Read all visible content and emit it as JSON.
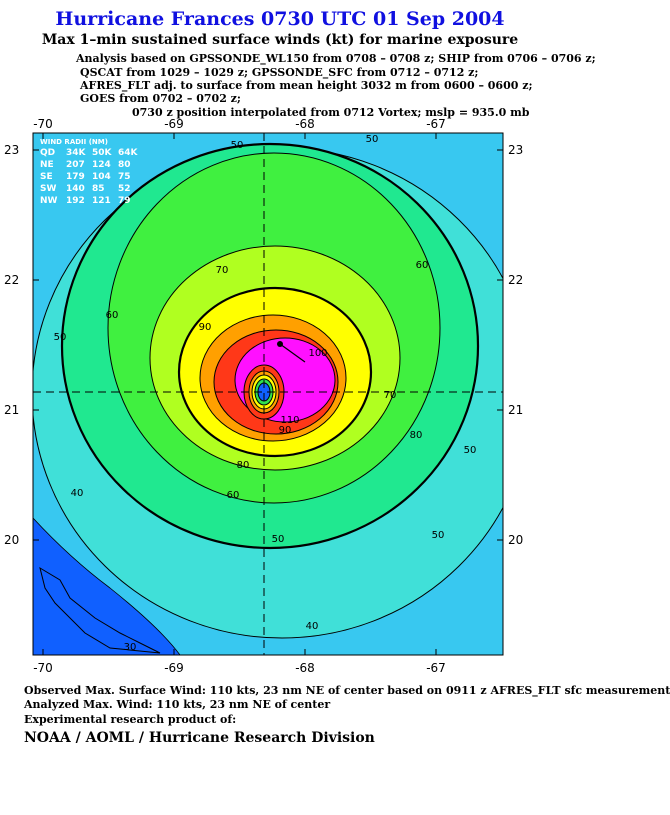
{
  "header": {
    "title": "Hurricane Frances 0730 UTC 01 Sep 2004",
    "subtitle": "Max 1–min sustained surface winds (kt) for marine exposure",
    "analysis_lines": [
      "Analysis based on  GPSSONDE_WL150 from 0708 – 0708 z;  SHIP from 0706 – 0706 z;",
      "QSCAT from 1029 – 1029 z;  GPSSONDE_SFC from 0712 – 0712 z;",
      "AFRES_FLT adj. to surface from mean height 3032 m from 0600 – 0600 z;",
      "GOES from 0702 – 0702 z;"
    ],
    "position_note": "0730 z position interpolated from 0712 Vortex; mslp = 935.0 mb"
  },
  "map": {
    "lon_ticks": [
      -70,
      -69,
      -68,
      -67
    ],
    "lat_ticks": [
      23,
      22,
      21,
      20
    ],
    "contour_labels": [
      "50",
      "50",
      "60",
      "70",
      "60",
      "50",
      "90",
      "100",
      "70",
      "80",
      "80",
      "60",
      "40",
      "50",
      "50",
      "40",
      "50",
      "90",
      "110",
      "30"
    ]
  },
  "wind_radii": {
    "title": "WIND RADII (NM)",
    "header": [
      "QD",
      "34K",
      "50K",
      "64K"
    ],
    "rows": [
      [
        "NE",
        "207",
        "124",
        "80"
      ],
      [
        "SE",
        "179",
        "104",
        "75"
      ],
      [
        "SW",
        "140",
        "85",
        "52"
      ],
      [
        "NW",
        "192",
        "121",
        "79"
      ]
    ]
  },
  "footer": {
    "lines": [
      "Observed Max. Surface Wind: 110 kts, 23 nm NE of center based on 0911 z AFRES_FLT sfc measurement",
      "Analyzed Max. Wind: 110 kts, 23 nm NE of center",
      "Experimental research product of:"
    ],
    "org": "NOAA / AOML / Hurricane Research Division"
  }
}
